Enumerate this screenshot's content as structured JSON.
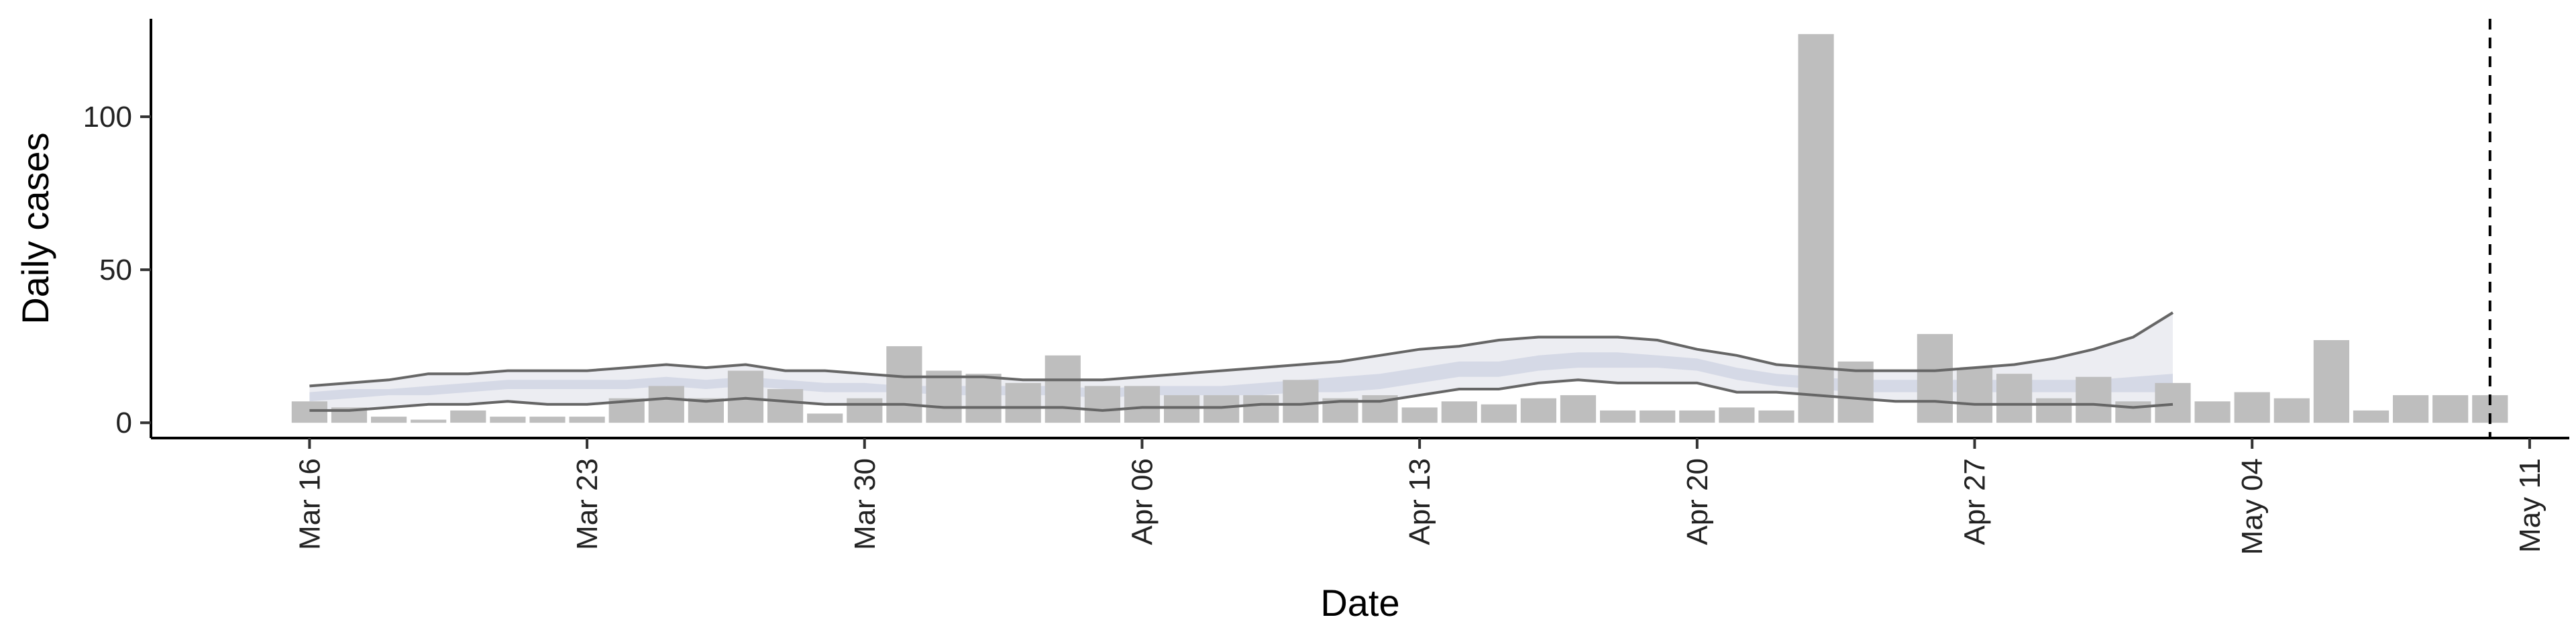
{
  "chart_data": {
    "type": "bar",
    "title": "",
    "xlabel": "Date",
    "ylabel": "Daily cases",
    "ylim": [
      -5,
      132
    ],
    "yticks": [
      0,
      50,
      100
    ],
    "x_range": [
      "2020-03-12",
      "2020-05-12"
    ],
    "x_ticks": [
      {
        "date": "2020-03-16",
        "label": "Mar 16"
      },
      {
        "date": "2020-03-23",
        "label": "Mar 23"
      },
      {
        "date": "2020-03-30",
        "label": "Mar 30"
      },
      {
        "date": "2020-04-06",
        "label": "Apr 06"
      },
      {
        "date": "2020-04-13",
        "label": "Apr 13"
      },
      {
        "date": "2020-04-20",
        "label": "Apr 20"
      },
      {
        "date": "2020-04-27",
        "label": "Apr 27"
      },
      {
        "date": "2020-05-04",
        "label": "May 04"
      },
      {
        "date": "2020-05-11",
        "label": "May 11"
      }
    ],
    "grid": false,
    "legend": "none",
    "bars": {
      "color": "#bebebe",
      "dates": [
        "2020-03-16",
        "2020-03-17",
        "2020-03-18",
        "2020-03-19",
        "2020-03-20",
        "2020-03-21",
        "2020-03-22",
        "2020-03-23",
        "2020-03-24",
        "2020-03-25",
        "2020-03-26",
        "2020-03-27",
        "2020-03-28",
        "2020-03-29",
        "2020-03-30",
        "2020-03-31",
        "2020-04-01",
        "2020-04-02",
        "2020-04-03",
        "2020-04-04",
        "2020-04-05",
        "2020-04-06",
        "2020-04-07",
        "2020-04-08",
        "2020-04-09",
        "2020-04-10",
        "2020-04-11",
        "2020-04-12",
        "2020-04-13",
        "2020-04-14",
        "2020-04-15",
        "2020-04-16",
        "2020-04-17",
        "2020-04-18",
        "2020-04-19",
        "2020-04-20",
        "2020-04-21",
        "2020-04-22",
        "2020-04-23",
        "2020-04-24",
        "2020-04-25",
        "2020-04-26",
        "2020-04-27",
        "2020-04-28",
        "2020-04-29",
        "2020-04-30",
        "2020-05-01",
        "2020-05-02",
        "2020-05-03",
        "2020-05-04",
        "2020-05-05",
        "2020-05-06",
        "2020-05-07",
        "2020-05-08",
        "2020-05-09",
        "2020-05-10"
      ],
      "values": [
        7,
        5,
        2,
        1,
        4,
        2,
        2,
        2,
        8,
        12,
        8,
        17,
        11,
        3,
        8,
        25,
        17,
        16,
        13,
        22,
        12,
        12,
        9,
        9,
        9,
        14,
        8,
        9,
        5,
        7,
        6,
        8,
        9,
        4,
        4,
        4,
        5,
        4,
        127,
        20,
        0,
        29,
        18,
        16,
        8,
        15,
        7,
        13,
        7,
        10,
        8,
        27,
        4,
        9,
        9,
        9
      ]
    },
    "nowcast": {
      "dates": [
        "2020-03-16",
        "2020-03-17",
        "2020-03-18",
        "2020-03-19",
        "2020-03-20",
        "2020-03-21",
        "2020-03-22",
        "2020-03-23",
        "2020-03-24",
        "2020-03-25",
        "2020-03-26",
        "2020-03-27",
        "2020-03-28",
        "2020-03-29",
        "2020-03-30",
        "2020-03-31",
        "2020-04-01",
        "2020-04-02",
        "2020-04-03",
        "2020-04-04",
        "2020-04-05",
        "2020-04-06",
        "2020-04-07",
        "2020-04-08",
        "2020-04-09",
        "2020-04-10",
        "2020-04-11",
        "2020-04-12",
        "2020-04-13",
        "2020-04-14",
        "2020-04-15",
        "2020-04-16",
        "2020-04-17",
        "2020-04-18",
        "2020-04-19",
        "2020-04-20",
        "2020-04-21",
        "2020-04-22",
        "2020-04-23",
        "2020-04-24",
        "2020-04-25",
        "2020-04-26",
        "2020-04-27",
        "2020-04-28",
        "2020-04-29",
        "2020-04-30",
        "2020-05-01",
        "2020-05-02"
      ],
      "outer_lower": [
        4,
        4,
        5,
        6,
        6,
        7,
        6,
        6,
        7,
        8,
        7,
        8,
        7,
        6,
        6,
        6,
        5,
        5,
        5,
        5,
        4,
        5,
        5,
        5,
        6,
        6,
        7,
        7,
        9,
        11,
        11,
        13,
        14,
        13,
        13,
        13,
        10,
        10,
        9,
        8,
        7,
        7,
        6,
        6,
        6,
        6,
        5,
        6
      ],
      "outer_upper": [
        12,
        13,
        14,
        16,
        16,
        17,
        17,
        17,
        18,
        19,
        18,
        19,
        17,
        17,
        16,
        15,
        15,
        15,
        14,
        14,
        14,
        15,
        16,
        17,
        18,
        19,
        20,
        22,
        24,
        25,
        27,
        28,
        28,
        28,
        27,
        24,
        22,
        19,
        18,
        17,
        17,
        17,
        18,
        19,
        21,
        24,
        28,
        36
      ],
      "outer_color": "#dcdfe8",
      "inner_lower": [
        7,
        8,
        9,
        9,
        10,
        11,
        11,
        11,
        11,
        12,
        11,
        12,
        11,
        10,
        10,
        10,
        9,
        9,
        9,
        9,
        8,
        9,
        9,
        9,
        9,
        10,
        10,
        11,
        13,
        15,
        15,
        17,
        18,
        18,
        18,
        17,
        14,
        12,
        11,
        10,
        10,
        10,
        10,
        10,
        10,
        10,
        10,
        10
      ],
      "inner_upper": [
        10,
        11,
        11,
        12,
        13,
        14,
        14,
        14,
        14,
        15,
        14,
        15,
        14,
        13,
        13,
        12,
        12,
        12,
        12,
        12,
        11,
        12,
        12,
        12,
        13,
        14,
        15,
        16,
        18,
        20,
        20,
        22,
        23,
        23,
        22,
        21,
        18,
        16,
        15,
        14,
        14,
        14,
        14,
        14,
        14,
        14,
        15,
        16
      ],
      "inner_color": "#c2c8dc",
      "band_opacity": 0.55,
      "line_color": "#666666"
    },
    "reference_line": {
      "date": "2020-05-10",
      "style": "dashed",
      "color": "#000000"
    }
  }
}
